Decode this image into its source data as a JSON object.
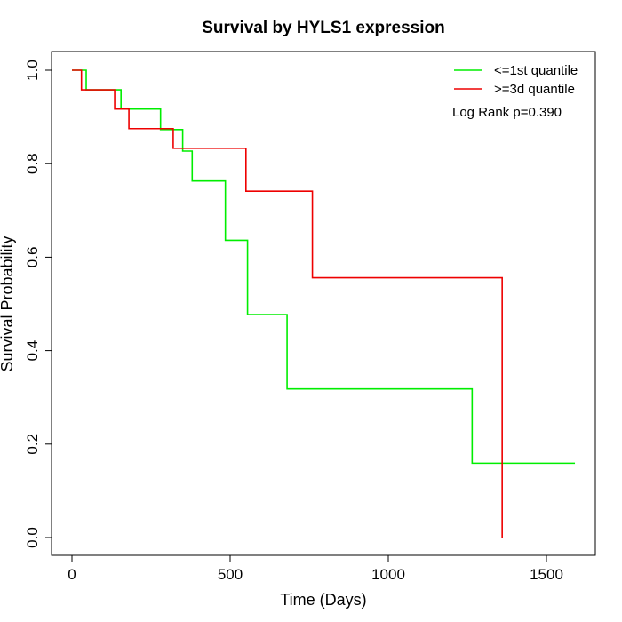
{
  "chart_data": {
    "type": "line",
    "subtype": "step",
    "title": "Survival by HYLS1 expression",
    "xlabel": "Time (Days)",
    "ylabel": "Survival Probability",
    "xlim": [
      0,
      1600
    ],
    "ylim": [
      0,
      1
    ],
    "xticks": [
      0,
      500,
      1000,
      1500
    ],
    "yticks": [
      0.0,
      0.2,
      0.4,
      0.6,
      0.8,
      1.0
    ],
    "ytick_labels": [
      "0.0",
      "0.2",
      "0.4",
      "0.6",
      "0.8",
      "1.0"
    ],
    "grid": false,
    "legend_position": "top-right",
    "annotation": "Log Rank p=0.390",
    "series": [
      {
        "name": "<=1st quantile",
        "color": "#00ee00",
        "x": [
          0,
          45,
          155,
          280,
          350,
          380,
          485,
          555,
          680,
          1265,
          1590
        ],
        "y": [
          1.0,
          0.958,
          0.917,
          0.873,
          0.827,
          0.763,
          0.636,
          0.477,
          0.318,
          0.159,
          0.159
        ]
      },
      {
        "name": ">=3d quantile",
        "color": "#ee0000",
        "x": [
          0,
          30,
          135,
          180,
          320,
          550,
          760,
          1360,
          1360
        ],
        "y": [
          1.0,
          0.958,
          0.917,
          0.875,
          0.833,
          0.741,
          0.556,
          0.556,
          0.0
        ]
      }
    ]
  }
}
